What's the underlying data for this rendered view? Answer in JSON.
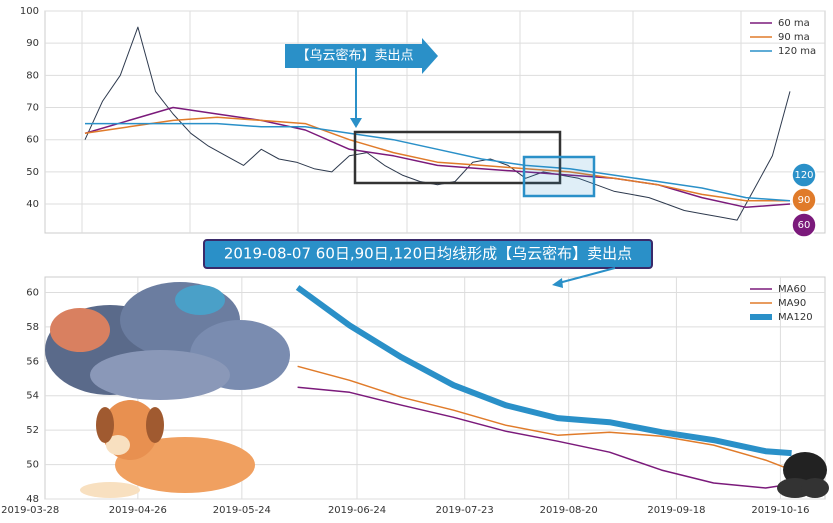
{
  "chart_data": [
    {
      "type": "line",
      "annotation": "【乌云密布】卖出点",
      "ylim": [
        31,
        100
      ],
      "yticks": [
        40,
        50,
        60,
        70,
        80,
        90,
        100
      ],
      "grid": true,
      "legend": "upper right",
      "price": {
        "color": "#2e3a4e",
        "values": [
          60,
          72,
          80,
          95,
          75,
          68,
          62,
          58,
          55,
          52,
          57,
          54,
          53,
          51,
          50,
          55,
          56,
          52,
          49,
          47,
          46,
          47,
          53,
          54,
          52,
          48,
          50,
          49,
          48,
          46,
          44,
          43,
          42,
          40,
          38,
          37,
          36,
          35,
          45,
          55,
          75
        ]
      },
      "series": [
        {
          "name": "60 ma",
          "color": "#7b1a7b",
          "values": [
            62,
            66,
            70,
            68,
            66,
            63,
            57,
            55,
            52,
            51,
            50,
            49,
            48,
            46,
            42,
            39,
            40
          ]
        },
        {
          "name": "90 ma",
          "color": "#e07b2a",
          "values": [
            62,
            64,
            66,
            67,
            66,
            65,
            60,
            56,
            53,
            52,
            51,
            50,
            48,
            46,
            43,
            41,
            41
          ]
        },
        {
          "name": "120 ma",
          "color": "#2a90c8",
          "values": [
            65,
            65,
            65,
            65,
            64,
            64,
            62,
            60,
            57,
            54,
            52,
            51,
            49,
            47,
            45,
            42,
            41
          ]
        }
      ],
      "end_labels": [
        "120",
        "90",
        "60"
      ]
    },
    {
      "type": "line",
      "annotation": "2019-08-07 60日,90日,120日均线形成【乌云密布】卖出点",
      "xlim": [
        "2019-04-01",
        "2019-10-28"
      ],
      "xticks": [
        "2019-03-28",
        "2019-04-26",
        "2019-05-24",
        "2019-06-24",
        "2019-07-23",
        "2019-08-20",
        "2019-09-18",
        "2019-10-16"
      ],
      "ylim": [
        48,
        60.9
      ],
      "yticks": [
        48,
        50,
        52,
        54,
        56,
        58,
        60
      ],
      "grid": true,
      "legend": "upper right",
      "x": [
        "2019-06-08",
        "2019-06-22",
        "2019-07-06",
        "2019-07-20",
        "2019-08-03",
        "2019-08-17",
        "2019-08-31",
        "2019-09-14",
        "2019-09-28",
        "2019-10-12",
        "2019-10-19"
      ],
      "series": [
        {
          "name": "MA60",
          "color": "#7b1a7b",
          "width": 1.5,
          "values": [
            54.49,
            54.2,
            53.45,
            52.75,
            51.94,
            51.36,
            50.72,
            49.68,
            48.93,
            48.64,
            48.87
          ]
        },
        {
          "name": "MA90",
          "color": "#e07b2a",
          "width": 1.5,
          "values": [
            55.71,
            54.9,
            53.91,
            53.16,
            52.29,
            51.71,
            51.88,
            51.65,
            51.13,
            50.26,
            49.68
          ]
        },
        {
          "name": "MA120",
          "color": "#2a90c8",
          "width": 6,
          "values": [
            60.29,
            58.09,
            56.23,
            54.61,
            53.45,
            52.7,
            52.46,
            51.88,
            51.42,
            50.78,
            50.67
          ]
        }
      ]
    }
  ]
}
